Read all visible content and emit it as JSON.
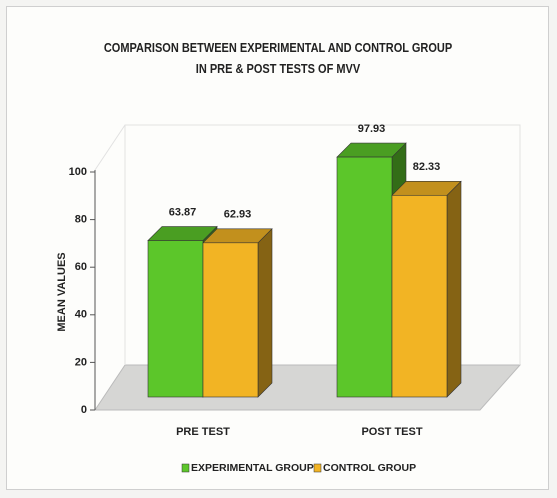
{
  "chart_data": {
    "type": "bar3d",
    "title": "COMPARISON BETWEEN EXPERIMENTAL AND CONTROL GROUP IN PRE & POST TESTS OF MVV",
    "ylabel": "MEAN VALUES",
    "categories": [
      "PRE TEST",
      "POST TEST"
    ],
    "series": [
      {
        "name": "EXPERIMENTAL GROUP",
        "color": "#5cc62a",
        "values": [
          63.87,
          97.93
        ]
      },
      {
        "name": "CONTROL GROUP",
        "color": "#f2b424",
        "values": [
          62.93,
          82.33
        ]
      }
    ],
    "ylim": [
      0,
      100
    ],
    "yticks": [
      0,
      20,
      40,
      60,
      80,
      100
    ],
    "legend": "bottom"
  }
}
